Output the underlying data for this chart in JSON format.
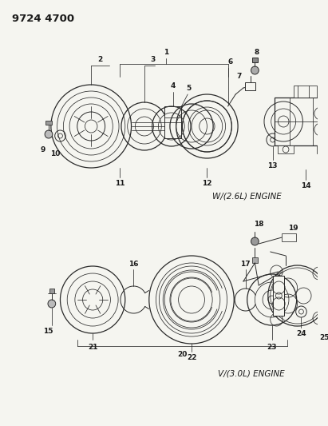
{
  "title": "9724 4700",
  "bg_color": "#f5f5f0",
  "line_color": "#2a2a2a",
  "text_color": "#1a1a1a",
  "engine1_label": "W/(2.6L) ENGINE",
  "engine2_label": "V/(3.0L) ENGINE",
  "figsize": [
    4.11,
    5.33
  ],
  "dpi": 100
}
